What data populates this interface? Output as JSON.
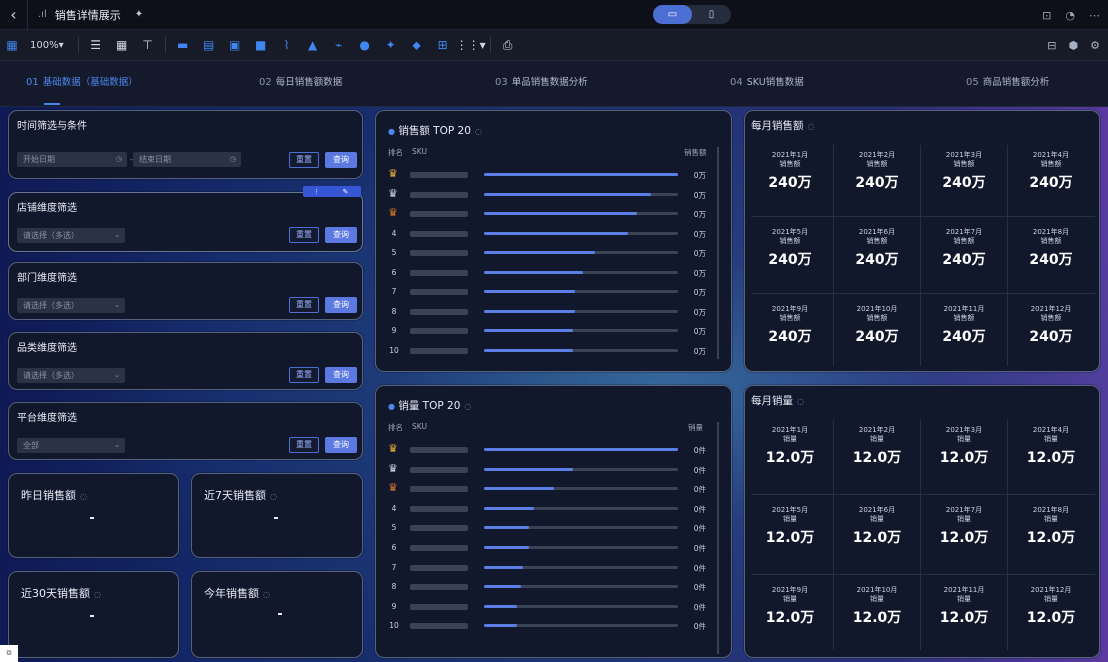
{
  "titlebar": {
    "back": "‹",
    "signal": ".ıl",
    "title": "销售详情展示",
    "star": "✦",
    "device_desktop": "▭",
    "device_mobile": "▯",
    "right_icons": [
      "lock-icon",
      "history-icon",
      "more-icon"
    ]
  },
  "toolbar": {
    "zoom": "100%▾",
    "tools": [
      "☰",
      "▦",
      "⊤",
      "▬",
      "▤",
      "▣",
      "■",
      "⌇",
      "▲",
      "⌁",
      "●",
      "✦",
      "⬥",
      "⊞",
      "⋮⋮▾",
      "⎙"
    ]
  },
  "steps": [
    {
      "no": "01",
      "label": "基础数据（基础数据）"
    },
    {
      "no": "02",
      "label": "每日销售额数据"
    },
    {
      "no": "03",
      "label": "单品销售数据分析"
    },
    {
      "no": "04",
      "label": "SKU销售数据"
    },
    {
      "no": "05",
      "label": "商品销售额分析"
    }
  ],
  "filters": [
    {
      "title": "时间筛选与条件",
      "date_start": "开始日期",
      "date_end": "结束日期",
      "reset": "重置",
      "query": "查询"
    },
    {
      "title": "店铺维度筛选",
      "select": "请选择（多选）",
      "reset": "重置",
      "query": "查询"
    },
    {
      "title": "部门维度筛选",
      "select": "请选择（多选）",
      "reset": "重置",
      "query": "查询"
    },
    {
      "title": "品类维度筛选",
      "select": "请选择（多选）",
      "reset": "重置",
      "query": "查询"
    },
    {
      "title": "平台维度筛选",
      "select": "全部",
      "reset": "重置",
      "query": "查询"
    }
  ],
  "kpis": [
    {
      "title": "昨日销售额"
    },
    {
      "title": "近7天销售额"
    },
    {
      "title": "近30天销售额"
    },
    {
      "title": "今年销售额"
    }
  ],
  "edit_badge": {
    "icons": [
      "⁝",
      "✎"
    ]
  },
  "ranking_sales": {
    "title": "销售额 TOP 20",
    "col_rank": "排名",
    "col_sku": "SKU",
    "col_value": "销售额",
    "rows": [
      {
        "rank": "1",
        "value": "0万",
        "fill": 1.0
      },
      {
        "rank": "2",
        "value": "0万",
        "fill": 0.86
      },
      {
        "rank": "3",
        "value": "0万",
        "fill": 0.79
      },
      {
        "rank": "4",
        "value": "0万",
        "fill": 0.74
      },
      {
        "rank": "5",
        "value": "0万",
        "fill": 0.57
      },
      {
        "rank": "6",
        "value": "0万",
        "fill": 0.51
      },
      {
        "rank": "7",
        "value": "0万",
        "fill": 0.47
      },
      {
        "rank": "8",
        "value": "0万",
        "fill": 0.47
      },
      {
        "rank": "9",
        "value": "0万",
        "fill": 0.46
      },
      {
        "rank": "10",
        "value": "0万",
        "fill": 0.46
      }
    ]
  },
  "ranking_volume": {
    "title": "销量 TOP 20",
    "col_rank": "排名",
    "col_sku": "SKU",
    "col_value": "销量",
    "rows": [
      {
        "rank": "1",
        "value": "0件",
        "fill": 1.0
      },
      {
        "rank": "2",
        "value": "0件",
        "fill": 0.46
      },
      {
        "rank": "3",
        "value": "0件",
        "fill": 0.36
      },
      {
        "rank": "4",
        "value": "0件",
        "fill": 0.26
      },
      {
        "rank": "5",
        "value": "0件",
        "fill": 0.23
      },
      {
        "rank": "6",
        "value": "0件",
        "fill": 0.23
      },
      {
        "rank": "7",
        "value": "0件",
        "fill": 0.2
      },
      {
        "rank": "8",
        "value": "0件",
        "fill": 0.19
      },
      {
        "rank": "9",
        "value": "0件",
        "fill": 0.17
      },
      {
        "rank": "10",
        "value": "0件",
        "fill": 0.17
      }
    ]
  },
  "monthly_sales": {
    "title": "每月销售额",
    "cells": [
      {
        "date": "2021年1月\n销售额",
        "value": "240万"
      },
      {
        "date": "2021年2月\n销售额",
        "value": "240万"
      },
      {
        "date": "2021年3月\n销售额",
        "value": "240万"
      },
      {
        "date": "2021年4月\n销售额",
        "value": "240万"
      },
      {
        "date": "2021年5月\n销售额",
        "value": "240万"
      },
      {
        "date": "2021年6月\n销售额",
        "value": "240万"
      },
      {
        "date": "2021年7月\n销售额",
        "value": "240万"
      },
      {
        "date": "2021年8月\n销售额",
        "value": "240万"
      },
      {
        "date": "2021年9月\n销售额",
        "value": "240万"
      },
      {
        "date": "2021年10月\n销售额",
        "value": "240万"
      },
      {
        "date": "2021年11月\n销售额",
        "value": "240万"
      },
      {
        "date": "2021年12月\n销售额",
        "value": "240万"
      }
    ]
  },
  "monthly_volume": {
    "title": "每月销量",
    "cells": [
      {
        "date": "2021年1月\n销量",
        "value": "12.0万"
      },
      {
        "date": "2021年2月\n销量",
        "value": "12.0万"
      },
      {
        "date": "2021年3月\n销量",
        "value": "12.0万"
      },
      {
        "date": "2021年4月\n销量",
        "value": "12.0万"
      },
      {
        "date": "2021年5月\n销量",
        "value": "12.0万"
      },
      {
        "date": "2021年6月\n销量",
        "value": "12.0万"
      },
      {
        "date": "2021年7月\n销量",
        "value": "12.0万"
      },
      {
        "date": "2021年8月\n销量",
        "value": "12.0万"
      },
      {
        "date": "2021年9月\n销量",
        "value": "12.0万"
      },
      {
        "date": "2021年10月\n销量",
        "value": "12.0万"
      },
      {
        "date": "2021年11月\n销量",
        "value": "12.0万"
      },
      {
        "date": "2021年12月\n销量",
        "value": "12.0万"
      }
    ]
  },
  "corner": "⧉",
  "colors": {
    "accent": "#4e86ee",
    "button": "#5b79e0",
    "gold": "#f0b43a",
    "silver": "#d6dbe6",
    "bronze": "#e07a2a"
  }
}
